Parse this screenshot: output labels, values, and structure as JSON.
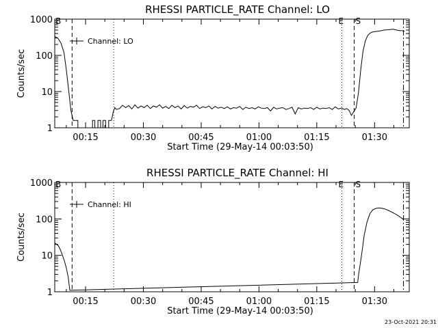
{
  "timestamp": "23-Oct-2021 20:31",
  "chart_data": [
    {
      "type": "line",
      "title": "RHESSI PARTICLE_RATE Channel: LO",
      "xlabel": "Start Time (29-May-14 00:03:50)",
      "ylabel": "Counts/sec",
      "yscale": "log",
      "ylim": [
        1,
        1000
      ],
      "xlim_minutes": [
        7,
        99
      ],
      "x_tick_labels": [
        {
          "t": 15,
          "label": "00:15"
        },
        {
          "t": 30,
          "label": "00:30"
        },
        {
          "t": 45,
          "label": "00:45"
        },
        {
          "t": 60,
          "label": "01:00"
        },
        {
          "t": 75,
          "label": "01:15"
        },
        {
          "t": 90,
          "label": "01:30"
        }
      ],
      "y_tick_labels": [
        "1",
        "10",
        "100",
        "1000"
      ],
      "legend": "Channel: LO",
      "grid": false,
      "markers": [
        {
          "t": 11.5,
          "style": "dashed",
          "label": "B"
        },
        {
          "t": 22.3,
          "style": "dotted",
          "label": ""
        },
        {
          "t": 81.5,
          "style": "dotted",
          "label": "E"
        },
        {
          "t": 84.7,
          "style": "dashed",
          "label": "S"
        },
        {
          "t": 97.5,
          "style": "dashdot",
          "label": ""
        }
      ],
      "series": [
        {
          "name": "Channel: LO",
          "t": [
            7.0,
            7.8,
            8.6,
            9.4,
            10.0,
            10.6,
            11.2,
            11.8,
            12.4,
            13.0,
            13.0,
            16.8,
            16.8,
            17.4,
            17.4,
            18.2,
            18.2,
            18.9,
            18.9,
            19.5,
            19.5,
            20.2,
            20.2,
            21.0,
            21.0,
            21.7,
            22.2,
            22.6,
            23.0,
            23.8,
            24.6,
            25.4,
            26.2,
            27.0,
            27.8,
            28.6,
            29.4,
            30.2,
            31.0,
            31.8,
            32.6,
            33.4,
            34.2,
            35.0,
            35.8,
            36.6,
            37.4,
            38.2,
            39.0,
            39.8,
            40.6,
            41.4,
            42.2,
            43.0,
            43.8,
            44.6,
            45.4,
            46.2,
            47.0,
            47.8,
            48.6,
            49.4,
            50.2,
            51.0,
            51.8,
            52.6,
            53.4,
            54.2,
            55.0,
            55.8,
            56.6,
            57.4,
            58.2,
            59.0,
            59.8,
            60.6,
            61.4,
            62.2,
            63.0,
            63.8,
            64.6,
            65.4,
            66.2,
            67.0,
            67.8,
            68.6,
            69.4,
            70.2,
            71.0,
            71.8,
            72.6,
            73.4,
            74.2,
            75.0,
            75.8,
            76.6,
            77.4,
            78.2,
            79.0,
            79.8,
            80.6,
            81.4,
            82.2,
            82.8,
            83.4,
            84.0,
            84.6,
            85.2,
            85.8,
            86.4,
            87.0,
            87.6,
            88.2,
            88.8,
            89.4,
            90.0,
            90.6,
            91.2,
            91.8,
            92.4,
            93.0,
            93.6,
            94.2,
            94.8,
            95.4,
            96.0,
            96.6,
            97.2,
            97.8
          ],
          "values": [
            330,
            300,
            220,
            120,
            40,
            11,
            3.0,
            1.6,
            1.6,
            1.6,
            1,
            1,
            1.6,
            1.6,
            1,
            1,
            1.6,
            1.6,
            1,
            1,
            1.6,
            1.6,
            1,
            1,
            1.6,
            1.6,
            2.8,
            3.6,
            3.2,
            3.4,
            4.2,
            3.6,
            4.1,
            3.3,
            4.3,
            3.5,
            4.0,
            3.6,
            4.2,
            3.4,
            4.0,
            3.7,
            4.3,
            3.5,
            3.9,
            3.4,
            4.2,
            3.6,
            4.0,
            3.3,
            4.1,
            3.5,
            3.9,
            3.7,
            4.2,
            3.4,
            3.8,
            3.6,
            4.0,
            3.3,
            3.9,
            3.5,
            3.7,
            3.4,
            3.8,
            3.3,
            3.6,
            3.5,
            3.9,
            3.2,
            3.7,
            3.4,
            3.6,
            3.3,
            3.8,
            3.5,
            3.4,
            3.6,
            2.9,
            3.7,
            3.3,
            3.5,
            3.6,
            3.2,
            3.4,
            3.7,
            2.4,
            3.6,
            3.3,
            3.5,
            3.4,
            3.6,
            3.2,
            3.7,
            3.3,
            3.5,
            3.4,
            3.6,
            3.2,
            3.8,
            3.3,
            3.5,
            3.2,
            3.4,
            3.0,
            2.2,
            2.8,
            3.5,
            9,
            40,
            130,
            250,
            350,
            410,
            440,
            450,
            460,
            470,
            480,
            500,
            505,
            510,
            520,
            525,
            510,
            490,
            480,
            480,
            460
          ]
        }
      ]
    },
    {
      "type": "line",
      "title": "RHESSI PARTICLE_RATE Channel: HI",
      "xlabel": "Start Time (29-May-14 00:03:50)",
      "ylabel": "Counts/sec",
      "yscale": "log",
      "ylim": [
        1,
        1000
      ],
      "xlim_minutes": [
        7,
        99
      ],
      "x_tick_labels": [
        {
          "t": 15,
          "label": "00:15"
        },
        {
          "t": 30,
          "label": "00:30"
        },
        {
          "t": 45,
          "label": "00:45"
        },
        {
          "t": 60,
          "label": "01:00"
        },
        {
          "t": 75,
          "label": "01:15"
        },
        {
          "t": 90,
          "label": "01:30"
        }
      ],
      "y_tick_labels": [
        "1",
        "10",
        "100",
        "1000"
      ],
      "legend": "Channel: HI",
      "grid": false,
      "markers": [
        {
          "t": 11.5,
          "style": "dashed",
          "label": "B"
        },
        {
          "t": 22.3,
          "style": "dotted",
          "label": ""
        },
        {
          "t": 81.5,
          "style": "dotted",
          "label": "E"
        },
        {
          "t": 84.7,
          "style": "dashed",
          "label": "S"
        },
        {
          "t": 97.5,
          "style": "dashdot",
          "label": ""
        }
      ],
      "series": [
        {
          "name": "Channel: HI",
          "t": [
            7.0,
            7.5,
            8.0,
            8.5,
            9.0,
            9.5,
            10.0,
            10.5,
            10.9,
            85.6,
            85.9,
            86.3,
            86.8,
            87.3,
            88.0,
            88.8,
            89.6,
            90.4,
            91.2,
            92.0,
            92.8,
            93.6,
            94.4,
            95.2,
            96.0,
            96.8,
            97.5
          ],
          "values": [
            22,
            20,
            18,
            14,
            10,
            7,
            4.5,
            2.5,
            1.1,
            1.8,
            3.2,
            6,
            14,
            35,
            80,
            140,
            180,
            195,
            200,
            195,
            185,
            170,
            155,
            140,
            125,
            110,
            95
          ]
        }
      ]
    }
  ]
}
